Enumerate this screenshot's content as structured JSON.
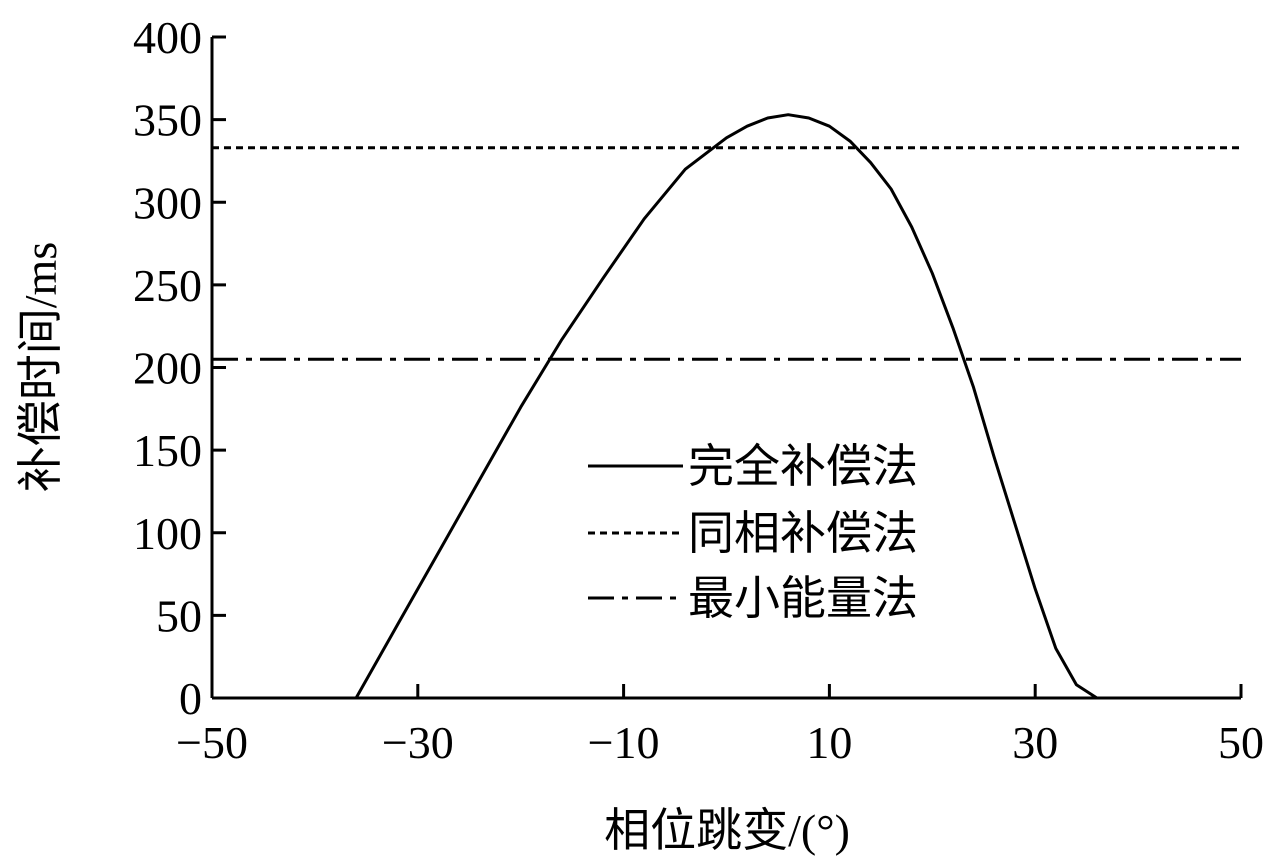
{
  "chart_data": {
    "type": "line",
    "title": "",
    "xlabel": "相位跳变/(°)",
    "ylabel": "补偿时间/ms",
    "xlim": [
      -50,
      50
    ],
    "ylim": [
      0,
      400
    ],
    "x_ticks": [
      -50,
      -30,
      -10,
      10,
      30,
      50
    ],
    "x_tick_labels": [
      "−50",
      "−30",
      "−10",
      "10",
      "30",
      "50"
    ],
    "y_ticks": [
      0,
      50,
      100,
      150,
      200,
      250,
      300,
      350,
      400
    ],
    "y_tick_labels": [
      "0",
      "50",
      "100",
      "150",
      "200",
      "250",
      "300",
      "350",
      "400"
    ],
    "grid": false,
    "legend_position": "center-right",
    "series": [
      {
        "name": "完全补偿法",
        "style": "solid",
        "color": "#000000",
        "x": [
          -36,
          -32,
          -28,
          -24,
          -20,
          -16,
          -12,
          -8,
          -4,
          0,
          2,
          4,
          6,
          8,
          10,
          12,
          14,
          16,
          18,
          20,
          22,
          24,
          26,
          28,
          30,
          32,
          34,
          36
        ],
        "y": [
          0,
          44,
          88,
          132,
          176,
          217,
          254,
          290,
          320,
          339,
          346,
          351,
          353,
          351,
          346,
          337,
          324,
          308,
          285,
          257,
          224,
          188,
          146,
          106,
          66,
          30,
          8,
          0
        ]
      },
      {
        "name": "同相补偿法",
        "style": "dotted",
        "color": "#000000",
        "x": [
          -50,
          50
        ],
        "y": [
          333,
          333
        ]
      },
      {
        "name": "最小能量法",
        "style": "dashdot",
        "color": "#000000",
        "x": [
          -50,
          50
        ],
        "y": [
          205,
          205
        ]
      }
    ]
  }
}
